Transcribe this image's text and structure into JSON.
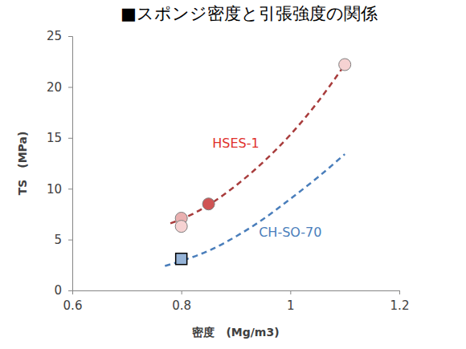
{
  "chart_data": {
    "type": "scatter",
    "title": "■スポンジ密度と引張強度の関係",
    "x_label": "密度　(Mg/m3)",
    "y_label": "TS　(MPa)",
    "xlim": [
      0.6,
      1.2
    ],
    "xticks": [
      0.6,
      0.8,
      1,
      1.2
    ],
    "ylim": [
      0,
      25
    ],
    "yticks": [
      0,
      5,
      10,
      15,
      20,
      25
    ],
    "grid": false,
    "series": [
      {
        "type": "scatter",
        "marker": "circle",
        "color": "#e8a3a3",
        "colors": [
          "#eab0b0",
          "#f6d2d2",
          "#d05454",
          "#f6d2d2"
        ],
        "x": [
          0.8,
          0.8,
          0.85,
          1.1
        ],
        "values": [
          7.1,
          6.3,
          8.5,
          22.2
        ]
      },
      {
        "type": "scatter",
        "marker": "square",
        "color": "#95b3d7",
        "x": [
          0.8
        ],
        "values": [
          3.1
        ]
      },
      {
        "type": "line",
        "line_style": "dashed",
        "color": "#a83c3c",
        "x": [
          0.78,
          0.8,
          0.85,
          0.9,
          0.95,
          1.0,
          1.05,
          1.1
        ],
        "values": [
          6.6,
          7.0,
          8.4,
          10.3,
          12.6,
          15.3,
          18.5,
          22.2
        ]
      },
      {
        "type": "line",
        "line_style": "dashed",
        "color": "#4a7ebb",
        "x": [
          0.77,
          0.8,
          0.85,
          0.9,
          0.95,
          1.0,
          1.05,
          1.1
        ],
        "values": [
          2.4,
          2.9,
          3.9,
          5.3,
          7.0,
          9.0,
          11.1,
          13.4
        ]
      }
    ],
    "annotations": [
      {
        "text": "HSES-1",
        "x": 0.9,
        "y": 14.0,
        "color": "#e0302a"
      },
      {
        "text": "CH-SO-70",
        "x": 1.0,
        "y": 5.3,
        "color": "#4a7ebb"
      }
    ]
  }
}
